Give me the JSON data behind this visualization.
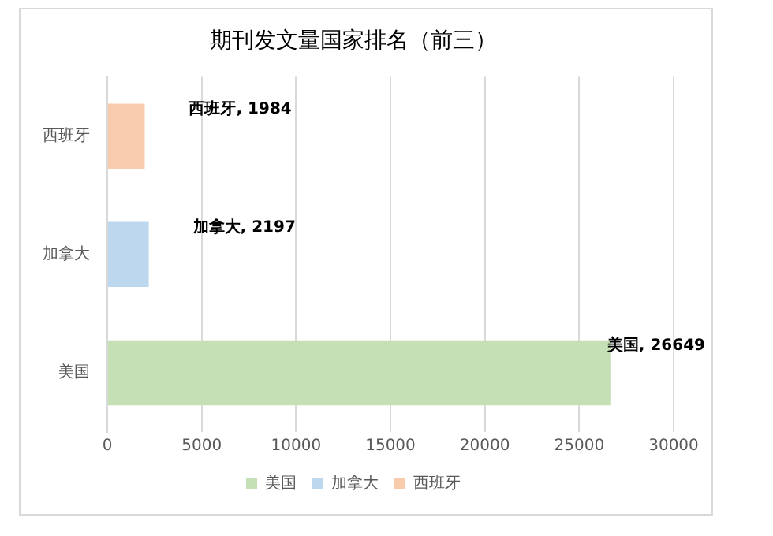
{
  "chart_data": {
    "type": "bar",
    "orientation": "horizontal",
    "title": "期刊发文量国家排名（前三）",
    "categories": [
      "西班牙",
      "加拿大",
      "美国"
    ],
    "series": [
      {
        "name": "美国",
        "color": "#c5e0b4",
        "values": [
          null,
          null,
          26649
        ],
        "value_labels": [
          null,
          null,
          "美国, 26649"
        ]
      },
      {
        "name": "加拿大",
        "color": "#bdd7ee",
        "values": [
          null,
          2197,
          null
        ],
        "value_labels": [
          null,
          "加拿大, 2197",
          null
        ]
      },
      {
        "name": "西班牙",
        "color": "#f8cbad",
        "values": [
          1984,
          null,
          null
        ],
        "value_labels": [
          "西班牙, 1984",
          null,
          null
        ]
      }
    ],
    "xlim": [
      0,
      30000
    ],
    "xticks": [
      0,
      5000,
      10000,
      15000,
      20000,
      25000,
      30000
    ],
    "grid": "x",
    "legend": "bottom"
  }
}
